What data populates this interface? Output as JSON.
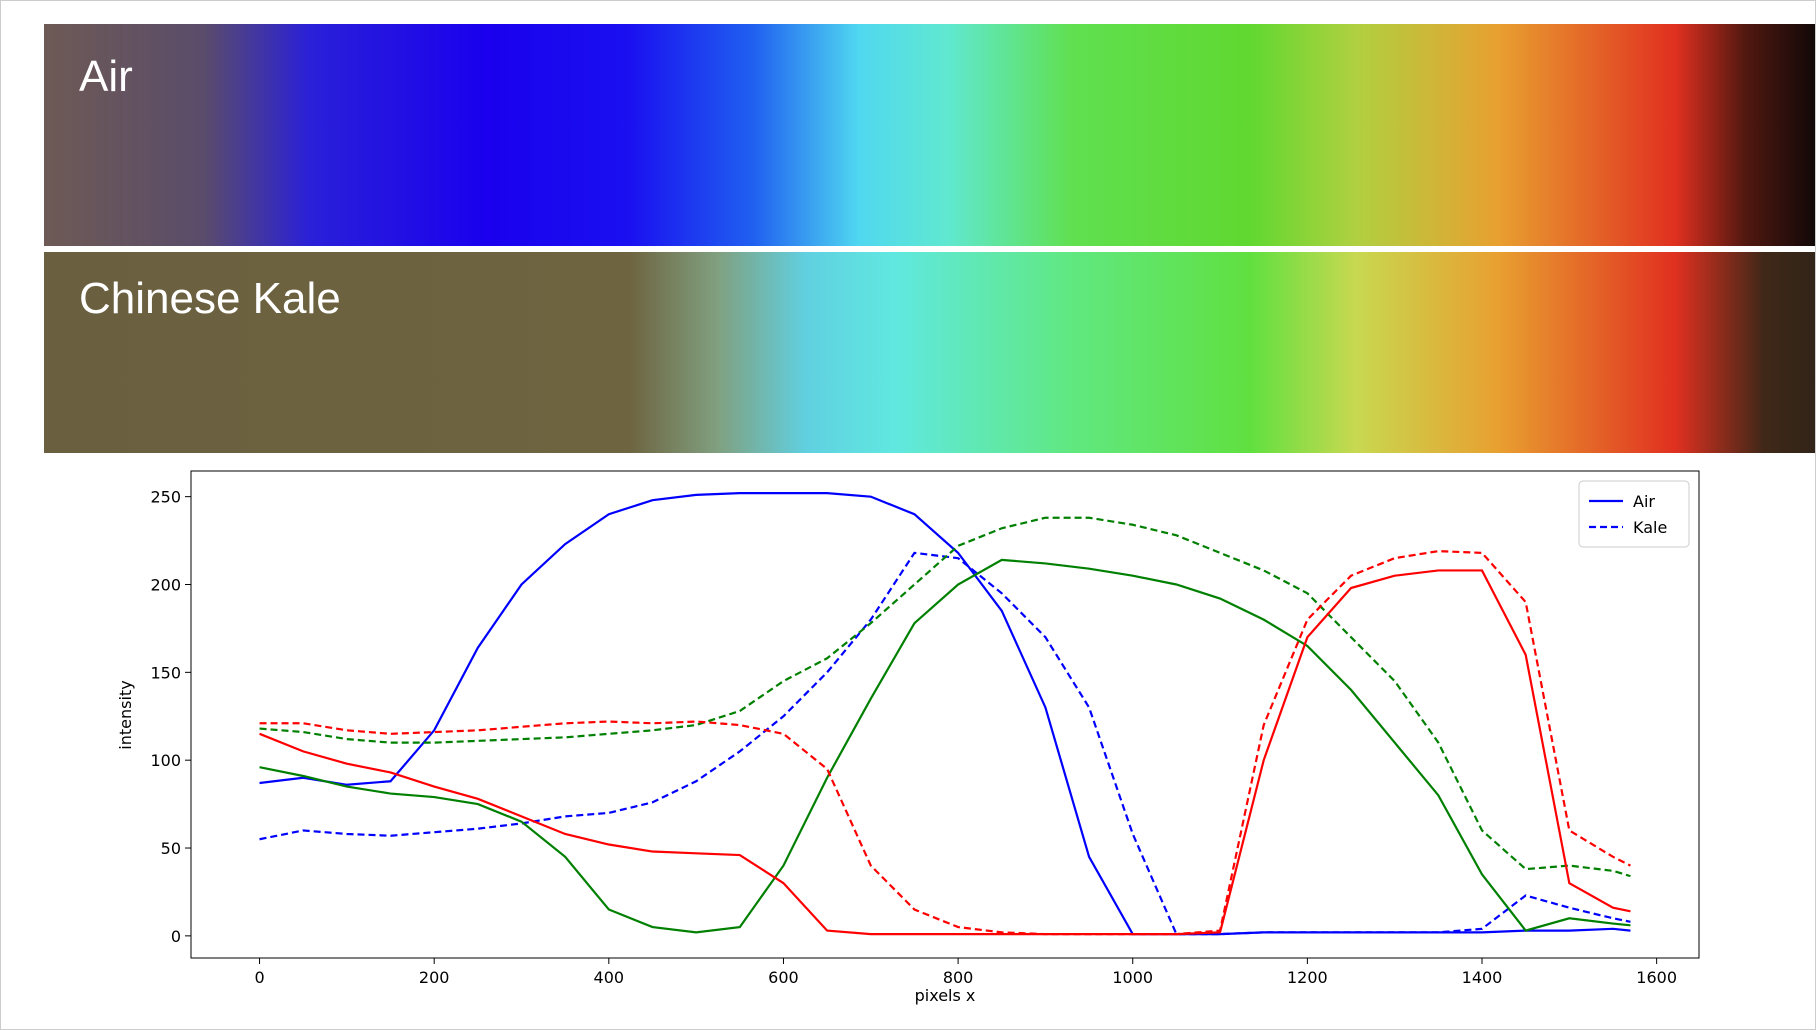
{
  "images": [
    {
      "label": "Air"
    },
    {
      "label": "Chinese Kale"
    }
  ],
  "chart_data": {
    "type": "line",
    "xlabel": "pixels x",
    "ylabel": "intensity",
    "x": [
      0,
      50,
      100,
      150,
      200,
      250,
      300,
      350,
      400,
      450,
      500,
      550,
      600,
      650,
      700,
      750,
      800,
      850,
      900,
      950,
      1000,
      1050,
      1100,
      1150,
      1200,
      1250,
      1300,
      1350,
      1400,
      1450,
      1500,
      1550,
      1570
    ],
    "series": [
      {
        "name": "Air",
        "color": "#0000ff",
        "dashed": false,
        "values": [
          87,
          90,
          86,
          88,
          117,
          164,
          200,
          223,
          240,
          248,
          251,
          252,
          252,
          252,
          250,
          240,
          218,
          185,
          130,
          45,
          1,
          1,
          1,
          2,
          2,
          2,
          2,
          2,
          2,
          3,
          3,
          4,
          3
        ]
      },
      {
        "name": "Kale",
        "color": "#0000ff",
        "dashed": true,
        "values": [
          55,
          60,
          58,
          57,
          59,
          61,
          64,
          68,
          70,
          76,
          88,
          105,
          125,
          150,
          180,
          218,
          215,
          195,
          170,
          130,
          58,
          1,
          1,
          2,
          2,
          2,
          2,
          2,
          4,
          23,
          16,
          10,
          8
        ]
      },
      {
        "color": "#008000",
        "dashed": false,
        "values": [
          96,
          91,
          85,
          81,
          79,
          75,
          65,
          45,
          15,
          5,
          2,
          5,
          40,
          90,
          135,
          178,
          200,
          214,
          212,
          209,
          205,
          200,
          192,
          180,
          165,
          140,
          110,
          80,
          35,
          3,
          10,
          7,
          6
        ]
      },
      {
        "color": "#008000",
        "dashed": true,
        "values": [
          118,
          116,
          112,
          110,
          110,
          111,
          112,
          113,
          115,
          117,
          120,
          128,
          145,
          158,
          178,
          200,
          222,
          232,
          238,
          238,
          234,
          228,
          218,
          208,
          195,
          170,
          145,
          110,
          60,
          38,
          40,
          37,
          34
        ]
      },
      {
        "color": "#ff0000",
        "dashed": false,
        "values": [
          115,
          105,
          98,
          93,
          85,
          78,
          68,
          58,
          52,
          48,
          47,
          46,
          30,
          3,
          1,
          1,
          1,
          1,
          1,
          1,
          1,
          1,
          2,
          100,
          170,
          198,
          205,
          208,
          208,
          160,
          30,
          16,
          14
        ]
      },
      {
        "color": "#ff0000",
        "dashed": true,
        "values": [
          121,
          121,
          117,
          115,
          116,
          117,
          119,
          121,
          122,
          121,
          122,
          120,
          115,
          95,
          40,
          15,
          5,
          2,
          1,
          1,
          1,
          1,
          3,
          120,
          180,
          205,
          215,
          219,
          218,
          190,
          60,
          45,
          40
        ]
      }
    ],
    "xlim": [
      -78.5,
      1648.5
    ],
    "xticks": [
      0,
      200,
      400,
      600,
      800,
      1000,
      1200,
      1400,
      1600
    ],
    "ylim": [
      -12.6,
      264.6
    ],
    "yticks": [
      0,
      50,
      100,
      150,
      200,
      250
    ],
    "legend": "upper right"
  }
}
